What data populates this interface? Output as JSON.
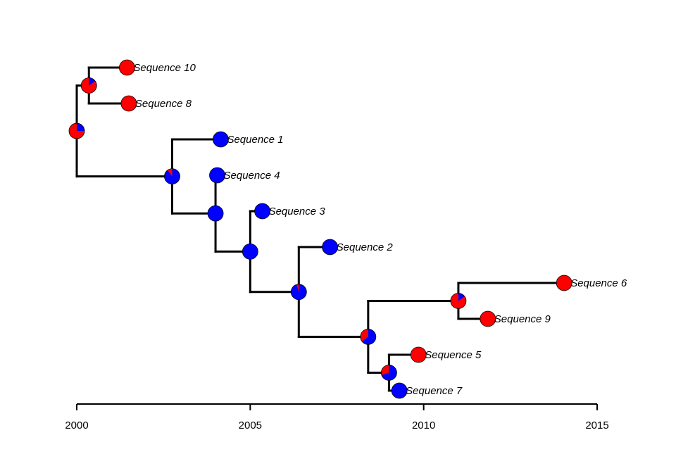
{
  "colors": {
    "state_red": "#ff0000",
    "state_blue": "#0000ff",
    "branch": "#000000"
  },
  "axis": {
    "range": [
      2000,
      2015
    ],
    "ticks": [
      {
        "value": 2000,
        "label": "2000"
      },
      {
        "value": 2005,
        "label": "2005"
      },
      {
        "value": 2010,
        "label": "2010"
      },
      {
        "value": 2015,
        "label": "2015"
      }
    ]
  },
  "tips": [
    {
      "id": "seq10",
      "label": "Sequence 10",
      "year": 2001.45,
      "red": 1.0
    },
    {
      "id": "seq8",
      "label": "Sequence 8",
      "year": 2001.5,
      "red": 1.0
    },
    {
      "id": "seq1",
      "label": "Sequence 1",
      "year": 2004.15,
      "red": 0.0
    },
    {
      "id": "seq4",
      "label": "Sequence 4",
      "year": 2004.05,
      "red": 0.0
    },
    {
      "id": "seq3",
      "label": "Sequence 3",
      "year": 2005.35,
      "red": 0.0
    },
    {
      "id": "seq2",
      "label": "Sequence 2",
      "year": 2007.3,
      "red": 0.0
    },
    {
      "id": "seq6",
      "label": "Sequence 6",
      "year": 2014.05,
      "red": 1.0
    },
    {
      "id": "seq9",
      "label": "Sequence 9",
      "year": 2011.85,
      "red": 1.0
    },
    {
      "id": "seq5",
      "label": "Sequence 5",
      "year": 2009.85,
      "red": 1.0
    },
    {
      "id": "seq7",
      "label": "Sequence 7",
      "year": 2009.3,
      "red": 0.0
    }
  ],
  "nodes": [
    {
      "id": "n_root",
      "year": 2000.0,
      "red": 0.75,
      "children": [
        "n_a",
        "n_b"
      ]
    },
    {
      "id": "n_a",
      "year": 2000.35,
      "red": 0.85,
      "children": [
        "seq10",
        "seq8"
      ]
    },
    {
      "id": "n_b",
      "year": 2002.75,
      "red": 0.1,
      "children": [
        "seq1",
        "n_c"
      ]
    },
    {
      "id": "n_c",
      "year": 2004.0,
      "red": 0.0,
      "children": [
        "seq4",
        "n_d"
      ]
    },
    {
      "id": "n_d",
      "year": 2005.0,
      "red": 0.0,
      "children": [
        "seq3",
        "n_e"
      ]
    },
    {
      "id": "n_e",
      "year": 2006.4,
      "red": 0.05,
      "children": [
        "seq2",
        "n_f"
      ]
    },
    {
      "id": "n_f",
      "year": 2008.4,
      "red": 0.35,
      "children": [
        "n_g",
        "n_h"
      ]
    },
    {
      "id": "n_g",
      "year": 2011.0,
      "red": 0.85,
      "children": [
        "seq6",
        "seq9"
      ]
    },
    {
      "id": "n_h",
      "year": 2009.0,
      "red": 0.3,
      "children": [
        "seq5",
        "seq7"
      ]
    }
  ]
}
